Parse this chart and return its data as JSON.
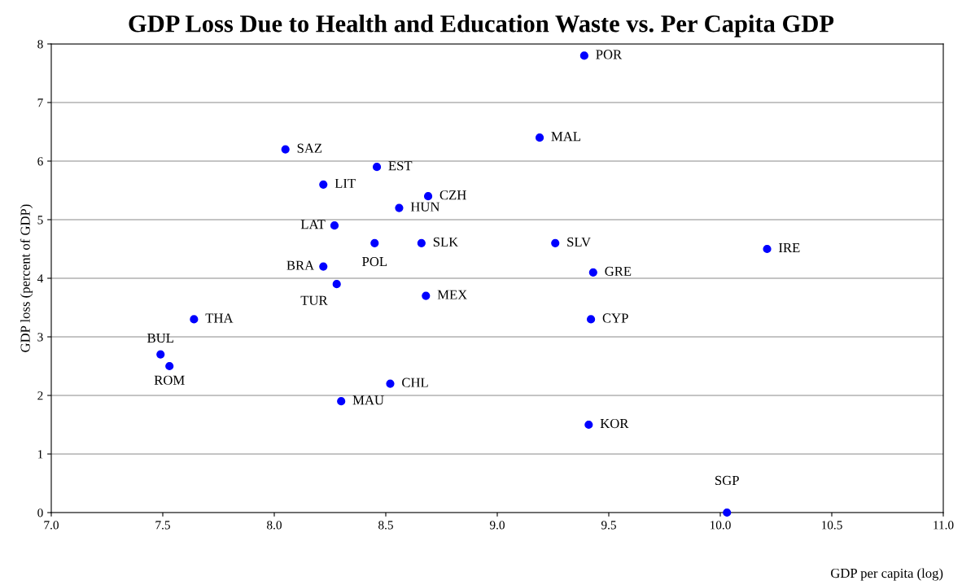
{
  "chart_data": {
    "type": "scatter",
    "title": "GDP Loss Due to Health and Education Waste vs. Per Capita GDP",
    "xlabel": "GDP per capita (log)",
    "ylabel": "GDP loss (percent of GDP)",
    "x": [
      9.39,
      9.19,
      8.05,
      8.46,
      8.22,
      8.69,
      8.56,
      8.27,
      8.45,
      8.66,
      9.26,
      10.21,
      8.22,
      9.43,
      8.28,
      8.68,
      7.64,
      9.42,
      7.49,
      7.53,
      8.52,
      8.3,
      9.41,
      10.03
    ],
    "series": [
      {
        "color": "#0000ff",
        "values": [
          7.8,
          6.4,
          6.2,
          5.9,
          5.6,
          5.4,
          5.2,
          4.9,
          4.6,
          4.6,
          4.6,
          4.5,
          4.2,
          4.1,
          3.9,
          3.7,
          3.3,
          3.3,
          2.7,
          2.5,
          2.2,
          1.9,
          1.5,
          0
        ]
      }
    ],
    "annotations": [
      {
        "text": "POR",
        "x": 9.39,
        "y": 7.8
      },
      {
        "text": "MAL",
        "x": 9.19,
        "y": 6.4
      },
      {
        "text": "SAZ",
        "x": 8.05,
        "y": 6.2
      },
      {
        "text": "EST",
        "x": 8.46,
        "y": 5.9
      },
      {
        "text": "LIT",
        "x": 8.22,
        "y": 5.6
      },
      {
        "text": "CZH",
        "x": 8.69,
        "y": 5.4
      },
      {
        "text": "HUN",
        "x": 8.56,
        "y": 5.2
      },
      {
        "text": "LAT",
        "x": 8.27,
        "y": 4.9
      },
      {
        "text": "POL",
        "x": 8.45,
        "y": 4.6
      },
      {
        "text": "SLK",
        "x": 8.66,
        "y": 4.6
      },
      {
        "text": "SLV",
        "x": 9.26,
        "y": 4.6
      },
      {
        "text": "IRE",
        "x": 10.21,
        "y": 4.5
      },
      {
        "text": "BRA",
        "x": 8.22,
        "y": 4.2
      },
      {
        "text": "GRE",
        "x": 9.43,
        "y": 4.1
      },
      {
        "text": "TUR",
        "x": 8.28,
        "y": 3.9
      },
      {
        "text": "MEX",
        "x": 8.68,
        "y": 3.7
      },
      {
        "text": "THA",
        "x": 7.64,
        "y": 3.3
      },
      {
        "text": "CYP",
        "x": 9.42,
        "y": 3.3
      },
      {
        "text": "BUL",
        "x": 7.49,
        "y": 2.7
      },
      {
        "text": "ROM",
        "x": 7.53,
        "y": 2.5
      },
      {
        "text": "CHL",
        "x": 8.52,
        "y": 2.2
      },
      {
        "text": "MAU",
        "x": 8.3,
        "y": 1.9
      },
      {
        "text": "KOR",
        "x": 9.41,
        "y": 1.5
      },
      {
        "text": "SGP",
        "x": 10.03,
        "y": 0
      }
    ],
    "xlim": [
      7.0,
      11.0
    ],
    "xticks": [
      {
        "value": 7,
        "label": "7.0"
      },
      {
        "value": 7.5,
        "label": "7.5"
      },
      {
        "value": 8,
        "label": "8.0"
      },
      {
        "value": 8.5,
        "label": "8.5"
      },
      {
        "value": 9,
        "label": "9.0"
      },
      {
        "value": 9.5,
        "label": "9.5"
      },
      {
        "value": 10,
        "label": "10.0"
      },
      {
        "value": 10.5,
        "label": "10.5"
      },
      {
        "value": 11,
        "label": "11.0"
      }
    ],
    "ylim": [
      0,
      8
    ],
    "yticks": [
      0,
      1,
      2,
      3,
      4,
      5,
      6,
      7,
      8
    ],
    "grid": "y",
    "marker": "circle"
  }
}
